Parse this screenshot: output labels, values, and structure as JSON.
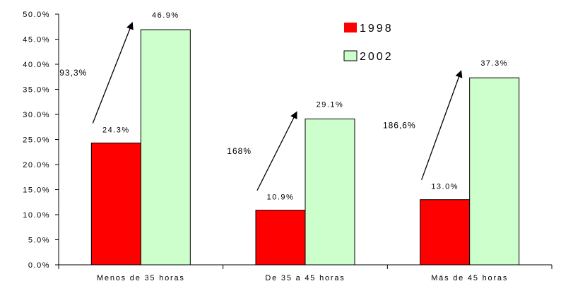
{
  "chart_data": {
    "type": "bar",
    "categories": [
      "Menos de 35 horas",
      "De 35 a 45 horas",
      "Más de 45 horas"
    ],
    "series": [
      {
        "name": "1998",
        "values": [
          24.3,
          10.9,
          13.0
        ],
        "labels": [
          "24.3%",
          "10.9%",
          "13.0%"
        ],
        "color": "#ff0000"
      },
      {
        "name": "2002",
        "values": [
          46.9,
          29.1,
          37.3
        ],
        "labels": [
          "46.9%",
          "29.1%",
          "37.3%"
        ],
        "color": "#ccffcc"
      }
    ],
    "growth_annotations": [
      "93,3%",
      "168%",
      "186,6%"
    ],
    "y_ticks": [
      "0.0%",
      "5.0%",
      "10.0%",
      "15.0%",
      "20.0%",
      "25.0%",
      "30.0%",
      "35.0%",
      "40.0%",
      "45.0%",
      "50.0%"
    ],
    "ylim": [
      0,
      50
    ],
    "grid": false,
    "legend_position": "top-right",
    "title": "",
    "xlabel": "",
    "ylabel": ""
  }
}
